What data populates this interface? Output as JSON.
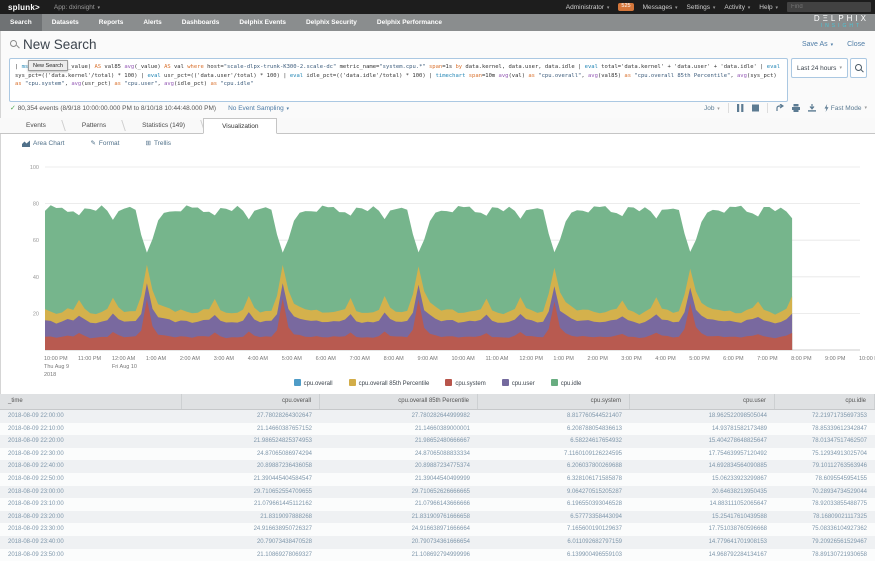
{
  "topbar": {
    "logo": "splunk>",
    "app": "App: dxinsight",
    "administrator": "Administrator",
    "badge": "525",
    "messages": "Messages",
    "settings": "Settings",
    "activity": "Activity",
    "help": "Help",
    "find": "Find"
  },
  "navbar": {
    "items": [
      {
        "label": "Search",
        "active": true
      },
      {
        "label": "Datasets",
        "active": false
      },
      {
        "label": "Reports",
        "active": false
      },
      {
        "label": "Alerts",
        "active": false
      },
      {
        "label": "Dashboards",
        "active": false
      },
      {
        "label": "Delphix Events",
        "active": false
      },
      {
        "label": "Delphix Security",
        "active": false
      },
      {
        "label": "Delphix Performance",
        "active": false
      }
    ],
    "brand_line1": "DΞLPHIX",
    "brand_line2": "INSIGHT"
  },
  "header": {
    "title": "New Search",
    "save_as": "Save As",
    "close": "Close"
  },
  "tooltip": {
    "text": "New Search"
  },
  "query": {
    "timerange": "Last 24 hours",
    "tokens": [
      [
        "| ",
        "d"
      ],
      [
        "mstats",
        "cmd"
      ],
      [
        " ",
        "d"
      ],
      [
        "perc95",
        "fn"
      ],
      [
        "(_value) ",
        "d"
      ],
      [
        "AS",
        "kw"
      ],
      [
        " val85 ",
        "d"
      ],
      [
        "avg",
        "fn"
      ],
      [
        "(_value) ",
        "d"
      ],
      [
        "AS",
        "kw"
      ],
      [
        " val ",
        "d"
      ],
      [
        "where",
        "kw"
      ],
      [
        " host=",
        "d"
      ],
      [
        "\"scale-dlpx-trunk-K300-2.scale-dc\"",
        "str"
      ],
      [
        " metric_name=",
        "d"
      ],
      [
        "\"system.cpu.*\"",
        "str"
      ],
      [
        " ",
        "d"
      ],
      [
        "span",
        "kw"
      ],
      [
        "=1s ",
        "d"
      ],
      [
        "by",
        "kw"
      ],
      [
        " data.kernel, data.user, data.idle ",
        "d"
      ],
      [
        "| ",
        "d"
      ],
      [
        "eval",
        "cmd"
      ],
      [
        " total='data.kernel' + 'data.user' + 'data.idle' ",
        "d"
      ],
      [
        "| ",
        "d"
      ],
      [
        "eval",
        "cmd"
      ],
      [
        " sys_pct=(('data.kernel'/total) * 100) ",
        "d"
      ],
      [
        "| ",
        "d"
      ],
      [
        "eval",
        "cmd"
      ],
      [
        " usr_pct=(('data.user'/total) * 100) ",
        "d"
      ],
      [
        "| ",
        "d"
      ],
      [
        "eval",
        "cmd"
      ],
      [
        " idle_pct=(('data.idle'/total) * 100) ",
        "d"
      ],
      [
        "| ",
        "d"
      ],
      [
        "timechart",
        "cmd"
      ],
      [
        " ",
        "d"
      ],
      [
        "span",
        "kw"
      ],
      [
        "=10m ",
        "d"
      ],
      [
        "avg",
        "fn"
      ],
      [
        "(val) ",
        "d"
      ],
      [
        "as",
        "kw"
      ],
      [
        " ",
        "d"
      ],
      [
        "\"cpu.overall\"",
        "str"
      ],
      [
        ", ",
        "d"
      ],
      [
        "avg",
        "fn"
      ],
      [
        "(val85) ",
        "d"
      ],
      [
        "as",
        "kw"
      ],
      [
        " ",
        "d"
      ],
      [
        "\"cpu.overall 85th Percentile\"",
        "str"
      ],
      [
        ", ",
        "d"
      ],
      [
        "avg",
        "fn"
      ],
      [
        "(sys_pct) ",
        "d"
      ],
      [
        "as",
        "kw"
      ],
      [
        " ",
        "d"
      ],
      [
        "\"cpu.system\"",
        "str"
      ],
      [
        ", ",
        "d"
      ],
      [
        "avg",
        "fn"
      ],
      [
        "(usr_pct) ",
        "d"
      ],
      [
        "as",
        "kw"
      ],
      [
        " ",
        "d"
      ],
      [
        "\"cpu.user\"",
        "str"
      ],
      [
        ", ",
        "d"
      ],
      [
        "avg",
        "fn"
      ],
      [
        "(idle_pct) ",
        "d"
      ],
      [
        "as",
        "kw"
      ],
      [
        " ",
        "d"
      ],
      [
        "\"cpu.idle\"",
        "str"
      ]
    ]
  },
  "status": {
    "events": "80,354 events (8/9/18 10:00:00.000 PM to 8/10/18 10:44:48.000 PM)",
    "sampling": "No Event Sampling",
    "job": "Job",
    "fast_mode": "Fast Mode"
  },
  "tabs": [
    {
      "label": "Events",
      "active": false
    },
    {
      "label": "Patterns",
      "active": false
    },
    {
      "label": "Statistics (149)",
      "active": false
    },
    {
      "label": "Visualization",
      "active": true
    }
  ],
  "viz": {
    "chart_type": "Area Chart",
    "format": "Format",
    "trellis": "Trellis"
  },
  "chart_data": {
    "type": "area",
    "stacked": true,
    "title": "",
    "ylim": [
      0,
      100
    ],
    "yticks": [
      20,
      40,
      60,
      80,
      100
    ],
    "legend_position": "bottom",
    "grid": "horizontal",
    "legend": [
      {
        "name": "cpu.overall",
        "color": "#4f9cc7"
      },
      {
        "name": "cpu.overall 85th Percentile",
        "color": "#d2ad49"
      },
      {
        "name": "cpu.system",
        "color": "#b8554b"
      },
      {
        "name": "cpu.user",
        "color": "#746a9e"
      },
      {
        "name": "cpu.idle",
        "color": "#68ad80"
      }
    ],
    "series_colors": {
      "system": "#b85a50",
      "user": "#79699f",
      "p85": "#d4b14c",
      "idle": "#76b58c"
    },
    "x_ticks": [
      "10:00 PM",
      "11:00 PM",
      "12:00 AM",
      "1:00 AM",
      "2:00 AM",
      "3:00 AM",
      "4:00 AM",
      "5:00 AM",
      "6:00 AM",
      "7:00 AM",
      "8:00 AM",
      "9:00 AM",
      "10:00 AM",
      "11:00 AM",
      "12:00 PM",
      "1:00 PM",
      "2:00 PM",
      "3:00 PM",
      "4:00 PM",
      "5:00 PM",
      "6:00 PM",
      "7:00 PM",
      "8:00 PM",
      "9:00 PM",
      "10:00 PM"
    ],
    "x_sub": [
      {
        "hour": 0,
        "lines": [
          "Thu Aug 9",
          "2018"
        ]
      },
      {
        "hour": 2,
        "lines": [
          "Fri Aug 10"
        ]
      }
    ],
    "axis_steps": 144,
    "data_steps": 132,
    "step_minutes": 10,
    "note": "Stacked bands (bottom to top: cpu.system red, cpu.user purple, cpu.overall 85th Percentile yellow, cpu.idle green) repeat a ~4-hour pattern with large spikes at 1:00/5:00/9:00 AM-PM; data ends at 8:00 PM.",
    "pattern": {
      "cpu_system": [
        7.2,
        7.0,
        6.8,
        7.0,
        7.4,
        7.6,
        9.2,
        7.6,
        7.0,
        6.9,
        7.1,
        7.6,
        9.6,
        7.8,
        7.1,
        6.9,
        7.2,
        11.0,
        27.0,
        13.0,
        9.0,
        8.0,
        7.6,
        7.3
      ],
      "cpu_user": [
        8.8,
        8.4,
        8.1,
        8.3,
        8.7,
        8.9,
        9.8,
        8.8,
        8.2,
        8.1,
        8.4,
        8.8,
        10.2,
        9.0,
        8.4,
        8.2,
        8.6,
        9.2,
        8.4,
        9.6,
        10.0,
        9.2,
        8.9,
        8.6
      ],
      "cpu_85": [
        5.8,
        5.3,
        5.0,
        5.2,
        5.6,
        6.0,
        8.4,
        5.9,
        5.2,
        5.0,
        5.4,
        6.0,
        9.0,
        6.2,
        5.5,
        5.2,
        5.7,
        9.5,
        10.5,
        9.8,
        7.2,
        6.4,
        6.0,
        5.7
      ],
      "total": [
        76,
        78,
        77,
        78.5,
        76.5,
        75.5,
        72.5,
        77,
        78,
        77,
        78.5,
        75,
        71,
        77,
        78,
        77.5,
        75.5,
        63,
        54,
        61,
        70,
        74,
        76,
        77
      ]
    }
  },
  "table": {
    "columns": [
      "_time",
      "cpu.overall",
      "cpu.overall 85th Percentile",
      "cpu.system",
      "cpu.user",
      "cpu.idle"
    ],
    "rows": [
      [
        "2018-08-09 22:00:00",
        "27.78028264302647",
        "27.780282644999982",
        "8.817760544521407",
        "18.962522098505044",
        "72.21971735697353"
      ],
      [
        "2018-08-09 22:10:00",
        "21.14660387657152",
        "21.14660389000001",
        "6.208788054836613",
        "14.93781582173489",
        "78.85339612342847"
      ],
      [
        "2018-08-09 22:20:00",
        "21.986524825374953",
        "21.98652480666667",
        "6.58224617654932",
        "15.404278648825647",
        "78.01347517462507"
      ],
      [
        "2018-08-09 22:30:00",
        "24.87065086974294",
        "24.87065088833334",
        "7.1160109126224595",
        "17.754639957120492",
        "75.12934913025704"
      ],
      [
        "2018-08-09 22:40:00",
        "20.89887236436058",
        "20.89887234775374",
        "6.206037800269688",
        "14.692834564090885",
        "79.10112763563946"
      ],
      [
        "2018-08-09 22:50:00",
        "21.390445404584547",
        "21.39044540499999",
        "6.328106171585878",
        "15.06233923299867",
        "78.6095545954155"
      ],
      [
        "2018-08-09 23:00:00",
        "29.710652554709655",
        "29.710652626666665",
        "9.064270515205287",
        "20.64638213950435",
        "70.28934734529044"
      ],
      [
        "2018-08-09 23:10:00",
        "21.079661445112162",
        "21.07966143666666",
        "6.196550393046528",
        "14.883111052065647",
        "78.92033855488775"
      ],
      [
        "2018-08-09 23:20:00",
        "21.8319097888268",
        "21.831909761666658",
        "6.57773358443094",
        "15.25417610439588",
        "78.16809021117325"
      ],
      [
        "2018-08-09 23:30:00",
        "24.916638950726327",
        "24.916638971666664",
        "7.165600190129637",
        "17.751038760596668",
        "75.08336104927362"
      ],
      [
        "2018-08-09 23:40:00",
        "20.79073438470528",
        "20.790734361666654",
        "6.011092682797159",
        "14.779641701908153",
        "79.20926561529467"
      ],
      [
        "2018-08-09 23:50:00",
        "21.10869278069327",
        "21.108692794999996",
        "6.139900496559103",
        "14.968792284134167",
        "78.89130721930658"
      ]
    ]
  }
}
